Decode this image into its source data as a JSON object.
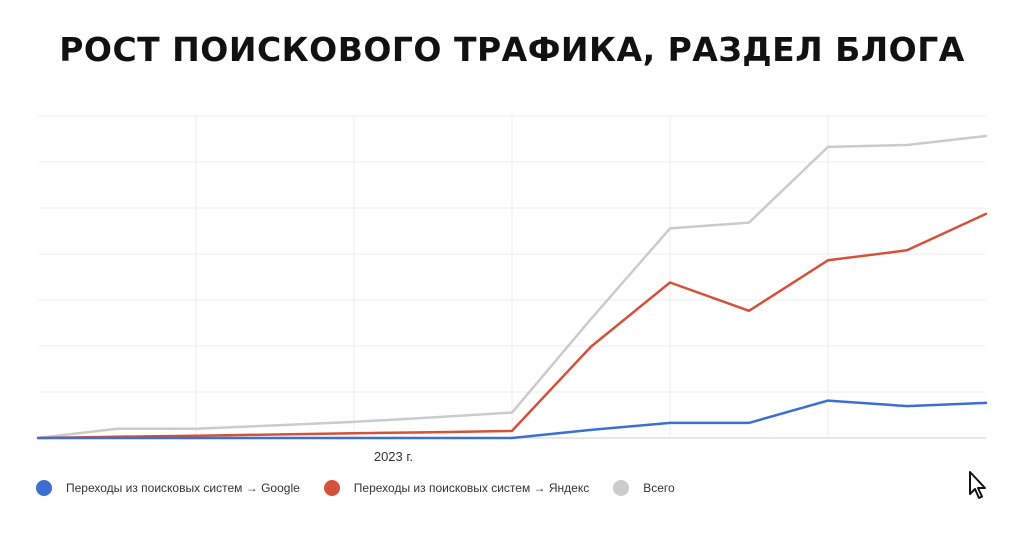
{
  "title": "РОСТ ПОИСКОВОГО ТРАФИКА, РАЗДЕЛ БЛОГА",
  "chart_data": {
    "type": "line",
    "title": "РОСТ ПОИСКОВОГО ТРАФИКА, РАЗДЕЛ БЛОГА",
    "x_tick_labels": [
      "2023 г."
    ],
    "x": [
      1,
      2,
      3,
      4,
      5,
      6,
      7,
      8,
      9,
      10,
      11,
      12,
      13
    ],
    "ylim": [
      0,
      100
    ],
    "grid": true,
    "legend_position": "bottom-left",
    "series": [
      {
        "name": "Переходы из поисковых систем → Google",
        "color": "#3b6fd1",
        "values": [
          0,
          0,
          0,
          0,
          0,
          0,
          0,
          2.5,
          4.7,
          4.7,
          11.6,
          9.9,
          10.9
        ]
      },
      {
        "name": "Переходы из поисковых систем → Яндекс",
        "color": "#d4523b",
        "values": [
          0,
          0.4,
          0.7,
          1.1,
          1.5,
          1.8,
          2.2,
          28.4,
          48.3,
          39.5,
          55.2,
          58.3,
          69.6
        ]
      },
      {
        "name": "Всего",
        "color": "#cbcbcb",
        "values": [
          0,
          2.9,
          2.9,
          3.9,
          5,
          6.4,
          7.9,
          37,
          65.1,
          66.9,
          90.4,
          91,
          93.8
        ]
      }
    ]
  }
}
